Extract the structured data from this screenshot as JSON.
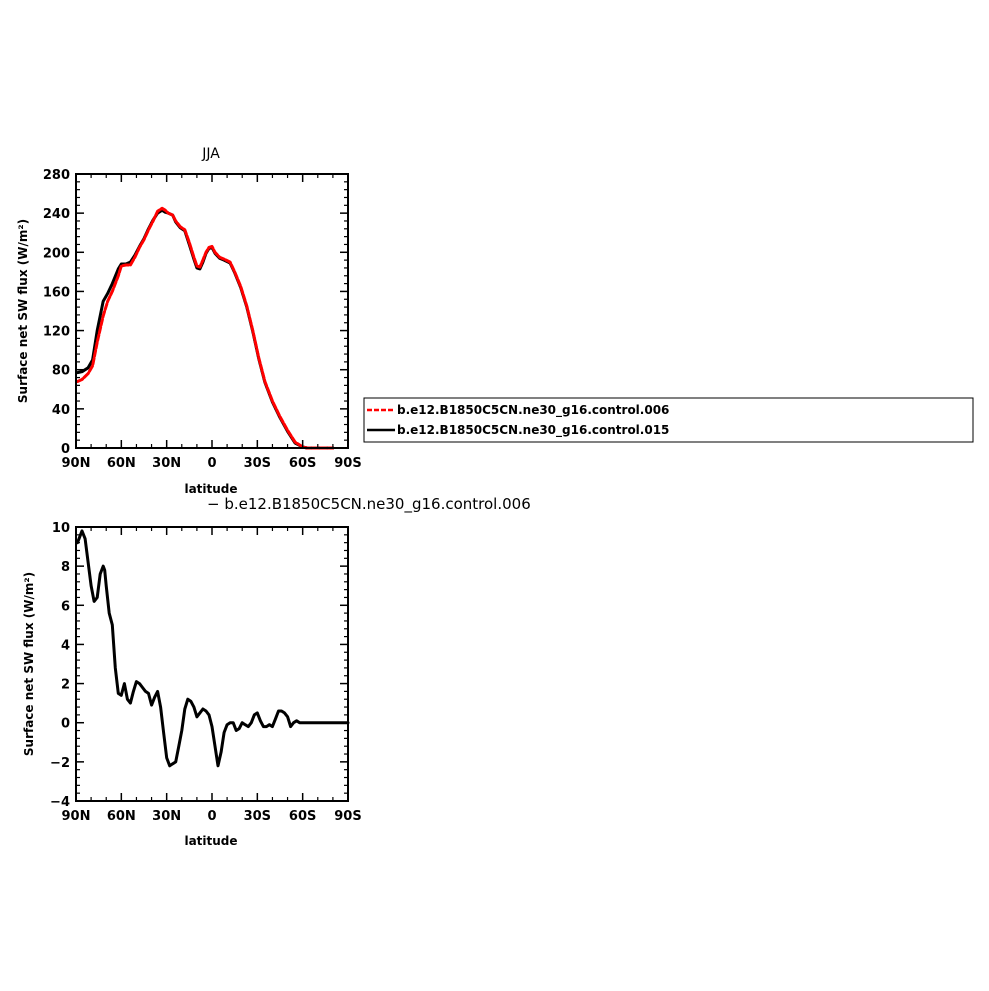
{
  "chart_data": [
    {
      "type": "line",
      "title": "JJA",
      "xlabel": "latitude",
      "ylabel": "Surface net SW flux (W/m²)",
      "xlim": [
        90,
        -90
      ],
      "ylim": [
        0,
        280
      ],
      "xticks": [
        90,
        60,
        30,
        0,
        -30,
        -60,
        -90
      ],
      "xtick_labels": [
        "90N",
        "60N",
        "30N",
        "0",
        "30S",
        "60S",
        "90S"
      ],
      "yticks": [
        0,
        40,
        80,
        120,
        160,
        200,
        240,
        280
      ],
      "ytick_labels": [
        "0",
        "40",
        "80",
        "120",
        "160",
        "200",
        "240",
        "280"
      ],
      "grid": false,
      "legend_placement": "right",
      "legend": [
        {
          "label": "b.e12.B1850C5CN.ne30_g16.control.006",
          "color": "#ff0000",
          "dash": "dashed"
        },
        {
          "label": "b.e12.B1850C5CN.ne30_g16.control.015",
          "color": "#000000",
          "dash": "solid"
        }
      ],
      "series": [
        {
          "name": "b.e12.B1850C5CN.ne30_g16.control.006",
          "color": "#ff0000",
          "x": [
            89,
            86,
            82,
            79,
            76,
            72,
            69,
            66,
            62,
            60,
            57,
            54,
            51,
            48,
            45,
            42,
            39,
            36,
            33,
            31,
            29,
            26,
            24,
            21,
            18,
            15,
            12,
            10,
            8,
            6,
            4,
            2,
            0,
            -2,
            -5,
            -8,
            -12,
            -15,
            -19,
            -23,
            -27,
            -31,
            -35,
            -40,
            -45,
            -50,
            -55,
            -60,
            -63,
            -66,
            -70,
            -75,
            -80
          ],
          "y": [
            68,
            70,
            76,
            84,
            108,
            135,
            150,
            160,
            176,
            186,
            187,
            187,
            195,
            205,
            213,
            223,
            232,
            242,
            245,
            243,
            240,
            238,
            232,
            226,
            223,
            210,
            195,
            186,
            185,
            192,
            200,
            205,
            206,
            200,
            195,
            193,
            190,
            180,
            165,
            145,
            120,
            92,
            68,
            48,
            32,
            18,
            6,
            1,
            0,
            0,
            0,
            0,
            0
          ]
        },
        {
          "name": "b.e12.B1850C5CN.ne30_g16.control.015",
          "color": "#000000",
          "x": [
            89,
            86,
            82,
            79,
            76,
            72,
            69,
            66,
            62,
            60,
            57,
            54,
            51,
            48,
            45,
            42,
            39,
            36,
            33,
            31,
            29,
            26,
            24,
            21,
            18,
            15,
            12,
            10,
            8,
            6,
            4,
            2,
            0,
            -2,
            -5,
            -8,
            -12,
            -15,
            -19,
            -23,
            -27,
            -31,
            -35,
            -40,
            -45,
            -50,
            -55,
            -60,
            -63,
            -66,
            -70,
            -75,
            -80
          ],
          "y": [
            77,
            78,
            82,
            90,
            120,
            150,
            158,
            168,
            183,
            188,
            188,
            190,
            197,
            206,
            214,
            224,
            233,
            240,
            243,
            241,
            240,
            238,
            231,
            225,
            222,
            208,
            193,
            184,
            183,
            190,
            199,
            204,
            205,
            199,
            194,
            192,
            189,
            179,
            164,
            144,
            119,
            91,
            67,
            47,
            31,
            17,
            5,
            1,
            0,
            0,
            0,
            0,
            0
          ]
        }
      ]
    },
    {
      "type": "line",
      "subtitle": "− b.e12.B1850C5CN.ne30_g16.control.006",
      "xlabel": "latitude",
      "ylabel": "Surface net SW flux (W/m²)",
      "xlim": [
        90,
        -90
      ],
      "ylim": [
        -4,
        10
      ],
      "xticks": [
        90,
        60,
        30,
        0,
        -30,
        -60,
        -90
      ],
      "xtick_labels": [
        "90N",
        "60N",
        "30N",
        "0",
        "30S",
        "60S",
        "90S"
      ],
      "yticks": [
        -4,
        -2,
        0,
        2,
        4,
        6,
        8,
        10
      ],
      "ytick_labels": [
        "−4",
        "−2",
        "0",
        "2",
        "4",
        "6",
        "8",
        "10"
      ],
      "grid": false,
      "series": [
        {
          "color": "#000000",
          "x": [
            89,
            87,
            86,
            84,
            82,
            80,
            78,
            76,
            74,
            72,
            71,
            70,
            68,
            66,
            64,
            62,
            60,
            58,
            56,
            54,
            52,
            50,
            48,
            46,
            44,
            42,
            40,
            38,
            36,
            34,
            32,
            30,
            28,
            26,
            24,
            22,
            20,
            18,
            16,
            14,
            12,
            10,
            8,
            6,
            4,
            2,
            0,
            -2,
            -4,
            -6,
            -8,
            -10,
            -12,
            -14,
            -16,
            -18,
            -20,
            -22,
            -24,
            -26,
            -28,
            -30,
            -32,
            -34,
            -36,
            -38,
            -40,
            -42,
            -44,
            -46,
            -48,
            -50,
            -52,
            -54,
            -56,
            -58,
            -60,
            -62,
            -64,
            -66,
            -70,
            -75,
            -80,
            -85,
            -90
          ],
          "y": [
            9.2,
            9.6,
            9.8,
            9.4,
            8.2,
            7.0,
            6.2,
            6.4,
            7.6,
            8.0,
            7.8,
            7.0,
            5.6,
            5.0,
            2.8,
            1.5,
            1.4,
            2.0,
            1.2,
            1.0,
            1.6,
            2.1,
            2.0,
            1.8,
            1.6,
            1.5,
            0.9,
            1.3,
            1.6,
            0.8,
            -0.5,
            -1.8,
            -2.2,
            -2.1,
            -2.0,
            -1.2,
            -0.4,
            0.7,
            1.2,
            1.1,
            0.8,
            0.3,
            0.5,
            0.7,
            0.6,
            0.4,
            -0.2,
            -1.2,
            -2.2,
            -1.5,
            -0.5,
            -0.1,
            0.0,
            0.0,
            -0.4,
            -0.3,
            0.0,
            -0.1,
            -0.2,
            0.0,
            0.4,
            0.5,
            0.1,
            -0.2,
            -0.2,
            -0.1,
            -0.2,
            0.2,
            0.6,
            0.6,
            0.5,
            0.3,
            -0.2,
            0.0,
            0.1,
            0.0,
            0.0,
            0.0,
            0.0,
            0.0,
            0.0,
            0.0,
            0.0,
            0.0,
            0.0
          ]
        }
      ]
    }
  ]
}
